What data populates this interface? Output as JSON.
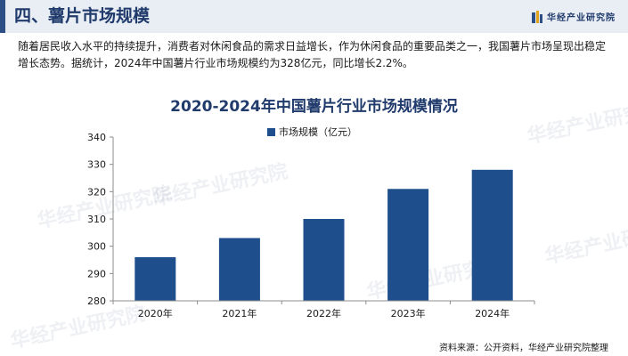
{
  "header": {
    "section_title": "四、薯片市场规模",
    "brand_name": "华经产业研究院"
  },
  "intro": {
    "text": "随着居民收入水平的持续提升，消费者对休闲食品的需求日益增长，作为休闲食品的重要品类之一，我国薯片市场呈现出稳定增长态势。据统计，2024年中国薯片行业市场规模约为328亿元，同比增长2.2%。"
  },
  "watermark": "华经产业研究院",
  "chart_data": {
    "type": "bar",
    "title": "2020-2024年中国薯片行业市场规模情况",
    "categories": [
      "2020年",
      "2021年",
      "2022年",
      "2023年",
      "2024年"
    ],
    "series": [
      {
        "name": "市场规模（亿元）",
        "values": [
          296,
          303,
          310,
          321,
          328
        ]
      }
    ],
    "ylim": [
      280,
      340
    ],
    "yticks": [
      280,
      290,
      300,
      310,
      320,
      330,
      340
    ],
    "xlabel": "",
    "ylabel": "",
    "legend_position": "top",
    "grid": false,
    "bar_color": "#1f4e8c"
  },
  "footer": {
    "source": "资料来源：公开资料，华经产业研究院整理"
  },
  "colors": {
    "accent": "#1f3a6b",
    "header_bg": "#e9eef5"
  }
}
